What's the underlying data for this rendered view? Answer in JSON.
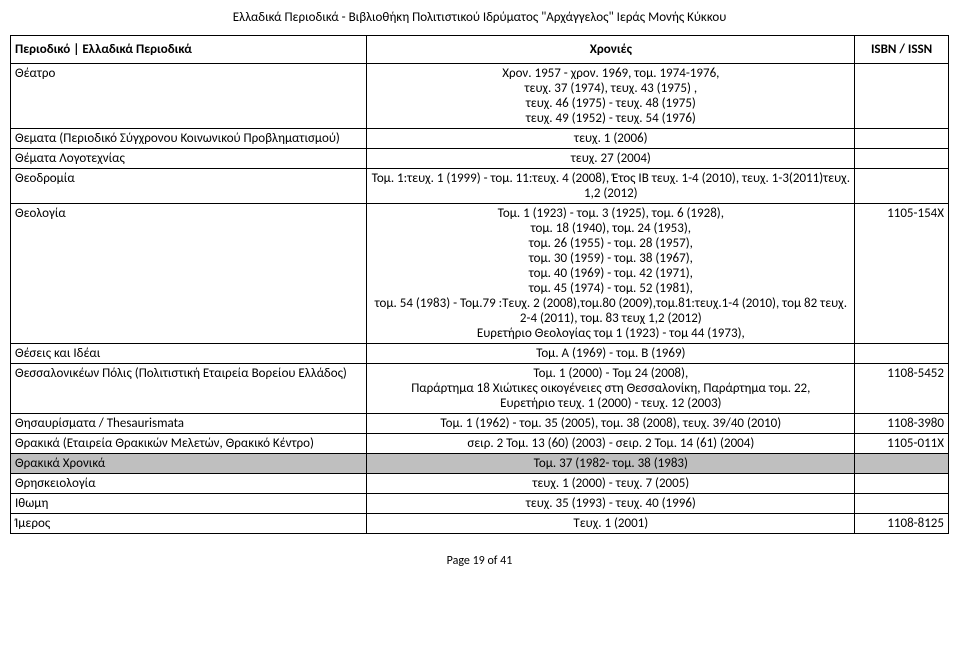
{
  "header": "Ελλαδικά Περιοδικά -  Βιβλιοθήκη Πολιτιστικού Ιδρύματος \"Αρχάγγελος\" Ιεράς Μονής Κύκκου",
  "columns": {
    "c1": "Περιοδικό | Ελλαδικά Περιοδικά",
    "c2": "Χρονιές",
    "c3": "ISBN / ISSN"
  },
  "rows": [
    {
      "title": "Θέατρο",
      "years": "Χρον. 1957 - χρον. 1969, τομ. 1974-1976,\nτευχ. 37 (1974), τευχ. 43 (1975) ,\nτευχ. 46 (1975) - τευχ. 48 (1975)\nτευχ. 49 (1952) - τευχ. 54 (1976)",
      "isbn": ""
    },
    {
      "title": "Θεματα (Περιοδικό Σύγχρονου Κοινωνικού Προβληματισμού)",
      "years": "τευχ. 1 (2006)",
      "isbn": "",
      "center": true
    },
    {
      "title": "Θέματα Λογοτεχνίας",
      "years": "τευχ. 27 (2004)",
      "isbn": "",
      "center": true
    },
    {
      "title": "Θεοδρομία",
      "years": "Τομ. 1:τευχ. 1 (1999) - τομ. 11:τευχ. 4 (2008), Έτος ΙΒ τευχ. 1-4 (2010), τευχ. 1-3(2011)τευχ. 1,2 (2012)",
      "isbn": ""
    },
    {
      "title": "Θεολογία",
      "years": "Τομ. 1 (1923) - τομ. 3 (1925), τομ. 6 (1928),\nτομ. 18 (1940), τομ. 24 (1953),\nτομ. 26 (1955) - τομ. 28 (1957),\nτομ. 30 (1959) - τομ. 38 (1967),\nτομ. 40 (1969) - τομ. 42 (1971),\nτομ. 45 (1974) - τομ. 52 (1981),\nτομ. 54 (1983) - Τομ.79 :Τευχ. 2 (2008),τομ.80 (2009),τομ.81:τευχ.1-4 (2010), τομ 82 τευχ. 2-4 (2011), τομ. 83 τευχ 1,2 (2012)\nΕυρετήριο Θεολογίας τομ 1 (1923)  - τομ 44 (1973),",
      "isbn": "1105-154X"
    },
    {
      "title": "Θέσεις και Ιδέαι",
      "years": "Τομ. Α (1969) - τομ. Β (1969)",
      "isbn": "",
      "center": true
    },
    {
      "title": "Θεσσαλονικέων Πόλις (Πολιτιστική Εταιρεία Βορείου Ελλάδος)",
      "years": "Τομ. 1 (2000) - Τομ 24 (2008),\nΠαράρτημα 18 Χιώτικες οικογένειες στη Θεσσαλονίκη, Παράρτημα τομ. 22,\nΕυρετήριο τευχ. 1 (2000) - τευχ. 12 (2003)",
      "isbn": "1108-5452"
    },
    {
      "title": "Θησαυρίσματα / Thesaurismata",
      "years": "Τομ. 1 (1962) - τομ. 35 (2005), τομ. 38 (2008), τευχ. 39/40 (2010)",
      "isbn": "1108-3980",
      "center": true
    },
    {
      "title": "Θρακικά (Εταιρεία Θρακικών Μελετών, Θρακικό Κέντρο)",
      "years": "σειρ. 2 Τομ. 13 (60) (2003) - σειρ. 2 Τομ. 14 (61) (2004)",
      "isbn": "1105-011X",
      "center": true
    },
    {
      "title": "Θρακικά Χρονικά",
      "years": "Τομ. 37 (1982- τομ. 38 (1983)",
      "isbn": "",
      "shaded": true,
      "center": true
    },
    {
      "title": "Θρησκειολογία",
      "years": "τευχ. 1 (2000) - τευχ. 7 (2005)",
      "isbn": "",
      "center": true
    },
    {
      "title": "Ιθωμη",
      "years": "τευχ. 35 (1993) - τευχ. 40 (1996)",
      "isbn": "",
      "center": true
    },
    {
      "title": "Ίμερος",
      "years": "Τευχ. 1 (2001)",
      "isbn": "1108-8125",
      "center": true
    }
  ],
  "footer": "Page 19 of 41"
}
